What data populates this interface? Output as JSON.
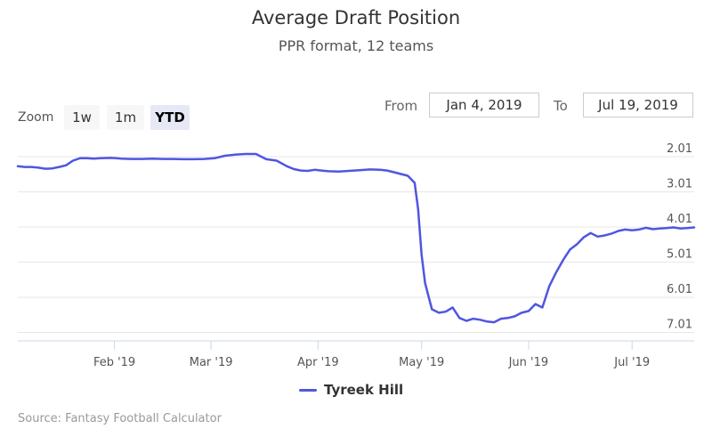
{
  "header": {
    "title": "Average Draft Position",
    "subtitle": "PPR format, 12 teams"
  },
  "range_selector": {
    "zoom_label": "Zoom",
    "buttons": [
      "1w",
      "1m",
      "YTD"
    ],
    "active": "YTD",
    "from_label": "From",
    "from_value": "Jan 4, 2019",
    "to_label": "To",
    "to_value": "Jul 19, 2019"
  },
  "legend": {
    "series_name": "Tyreek Hill"
  },
  "credits": "Source: Fantasy Football Calculator",
  "colors": {
    "series": "#4f56e0",
    "grid": "#e6e6e6"
  },
  "chart_data": {
    "type": "line",
    "title": "Average Draft Position",
    "subtitle": "PPR format, 12 teams",
    "xlabel": "",
    "ylabel": "",
    "y_reversed": true,
    "y_ticks": [
      "2.01",
      "3.01",
      "4.01",
      "5.01",
      "6.01",
      "7.01"
    ],
    "x_ticks": [
      "Feb '19",
      "Mar '19",
      "Apr '19",
      "May '19",
      "Jun '19",
      "Jul '19"
    ],
    "x_tick_dates": [
      "2019-02-01",
      "2019-03-01",
      "2019-04-01",
      "2019-05-01",
      "2019-06-01",
      "2019-07-01"
    ],
    "xlim": [
      "2019-01-04",
      "2019-07-19"
    ],
    "ylim": [
      1.6,
      7.25
    ],
    "grid": true,
    "legend_position": "bottom-center",
    "series": [
      {
        "name": "Tyreek Hill",
        "x": [
          "2019-01-04",
          "2019-01-06",
          "2019-01-08",
          "2019-01-10",
          "2019-01-12",
          "2019-01-14",
          "2019-01-16",
          "2019-01-18",
          "2019-01-20",
          "2019-01-22",
          "2019-01-24",
          "2019-01-26",
          "2019-01-28",
          "2019-01-31",
          "2019-02-03",
          "2019-02-06",
          "2019-02-09",
          "2019-02-12",
          "2019-02-15",
          "2019-02-18",
          "2019-02-21",
          "2019-02-24",
          "2019-02-27",
          "2019-03-02",
          "2019-03-05",
          "2019-03-08",
          "2019-03-11",
          "2019-03-14",
          "2019-03-17",
          "2019-03-20",
          "2019-03-23",
          "2019-03-25",
          "2019-03-27",
          "2019-03-29",
          "2019-03-31",
          "2019-04-02",
          "2019-04-04",
          "2019-04-07",
          "2019-04-10",
          "2019-04-13",
          "2019-04-16",
          "2019-04-19",
          "2019-04-21",
          "2019-04-23",
          "2019-04-25",
          "2019-04-27",
          "2019-04-29",
          "2019-04-30",
          "2019-05-01",
          "2019-05-02",
          "2019-05-04",
          "2019-05-06",
          "2019-05-08",
          "2019-05-10",
          "2019-05-12",
          "2019-05-14",
          "2019-05-16",
          "2019-05-18",
          "2019-05-20",
          "2019-05-22",
          "2019-05-24",
          "2019-05-26",
          "2019-05-28",
          "2019-05-30",
          "2019-06-01",
          "2019-06-03",
          "2019-06-05",
          "2019-06-07",
          "2019-06-09",
          "2019-06-11",
          "2019-06-13",
          "2019-06-15",
          "2019-06-17",
          "2019-06-19",
          "2019-06-21",
          "2019-06-23",
          "2019-06-25",
          "2019-06-27",
          "2019-06-29",
          "2019-07-01",
          "2019-07-03",
          "2019-07-05",
          "2019-07-07",
          "2019-07-09",
          "2019-07-11",
          "2019-07-13",
          "2019-07-15",
          "2019-07-17",
          "2019-07-19"
        ],
        "y": [
          2.28,
          2.3,
          2.3,
          2.32,
          2.35,
          2.34,
          2.3,
          2.25,
          2.12,
          2.05,
          2.05,
          2.06,
          2.05,
          2.04,
          2.06,
          2.07,
          2.07,
          2.06,
          2.07,
          2.07,
          2.08,
          2.08,
          2.07,
          2.05,
          1.98,
          1.95,
          1.93,
          1.93,
          2.08,
          2.12,
          2.28,
          2.36,
          2.4,
          2.41,
          2.38,
          2.4,
          2.42,
          2.43,
          2.41,
          2.39,
          2.37,
          2.38,
          2.4,
          2.45,
          2.5,
          2.55,
          2.75,
          3.5,
          4.8,
          5.6,
          6.35,
          6.45,
          6.42,
          6.3,
          6.6,
          6.68,
          6.62,
          6.65,
          6.7,
          6.72,
          6.62,
          6.6,
          6.55,
          6.45,
          6.4,
          6.2,
          6.3,
          5.7,
          5.3,
          4.95,
          4.65,
          4.5,
          4.3,
          4.18,
          4.28,
          4.25,
          4.2,
          4.12,
          4.08,
          4.1,
          4.08,
          4.03,
          4.07,
          4.05,
          4.04,
          4.02,
          4.05,
          4.04,
          4.02
        ]
      }
    ]
  }
}
